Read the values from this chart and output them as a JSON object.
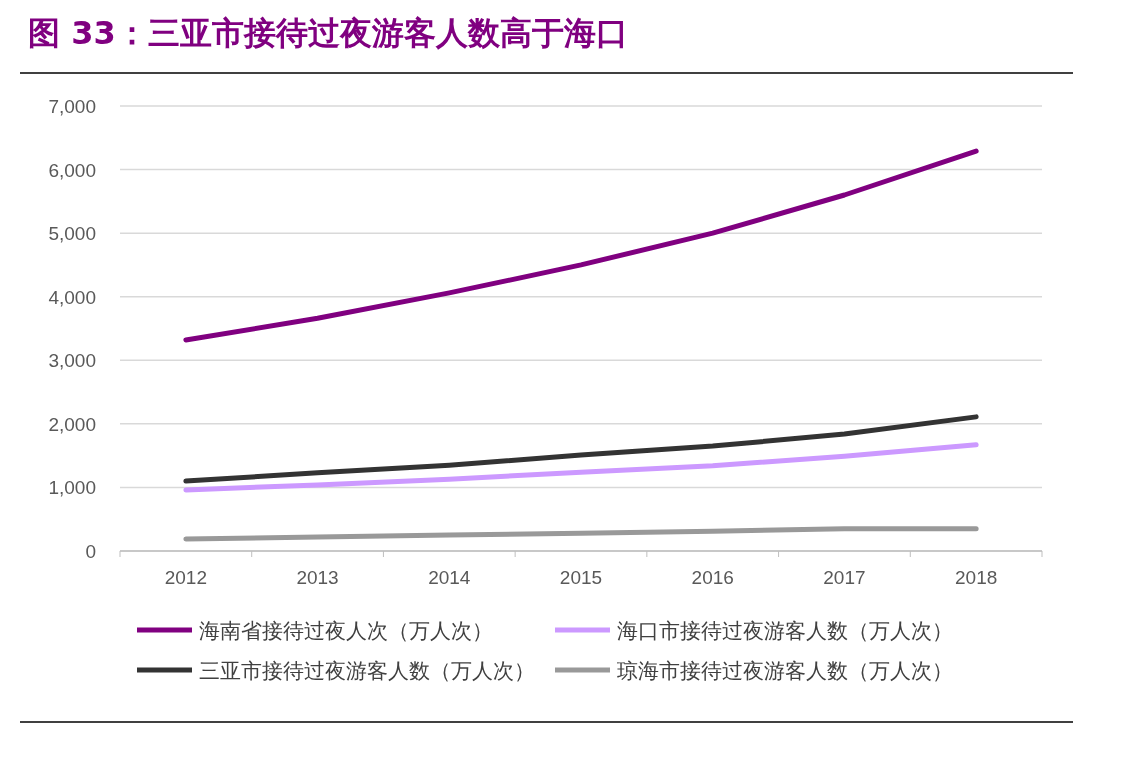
{
  "chart_data": {
    "type": "line",
    "title": "图 33：三亚市接待过夜游客人数高于海口",
    "categories": [
      "2012",
      "2013",
      "2014",
      "2015",
      "2016",
      "2017",
      "2018"
    ],
    "series": [
      {
        "name": "海南省接待过夜人次（万人次）",
        "color": "#800080",
        "values": [
          3320,
          3660,
          4060,
          4500,
          5000,
          5600,
          6290
        ]
      },
      {
        "name": "海口市接待过夜游客人数（万人次）",
        "color": "#cc99ff",
        "values": [
          960,
          1040,
          1130,
          1240,
          1340,
          1490,
          1670
        ]
      },
      {
        "name": "三亚市接待过夜游客人数（万人次）",
        "color": "#333333",
        "values": [
          1100,
          1230,
          1350,
          1510,
          1650,
          1840,
          2110
        ]
      },
      {
        "name": "琼海市接待过夜游客人数（万人次）",
        "color": "#999999",
        "values": [
          190,
          220,
          250,
          280,
          310,
          350,
          350
        ]
      }
    ],
    "ylim": [
      0,
      7000
    ],
    "yticks": [
      {
        "value": 0,
        "label": "0"
      },
      {
        "value": 1000,
        "label": "1,000"
      },
      {
        "value": 2000,
        "label": "2,000"
      },
      {
        "value": 3000,
        "label": "3,000"
      },
      {
        "value": 4000,
        "label": "4,000"
      },
      {
        "value": 5000,
        "label": "5,000"
      },
      {
        "value": 6000,
        "label": "6,000"
      },
      {
        "value": 7000,
        "label": "7,000"
      }
    ],
    "grid": "y",
    "legend": "bottom",
    "marker": "none",
    "line_style": "solid"
  }
}
